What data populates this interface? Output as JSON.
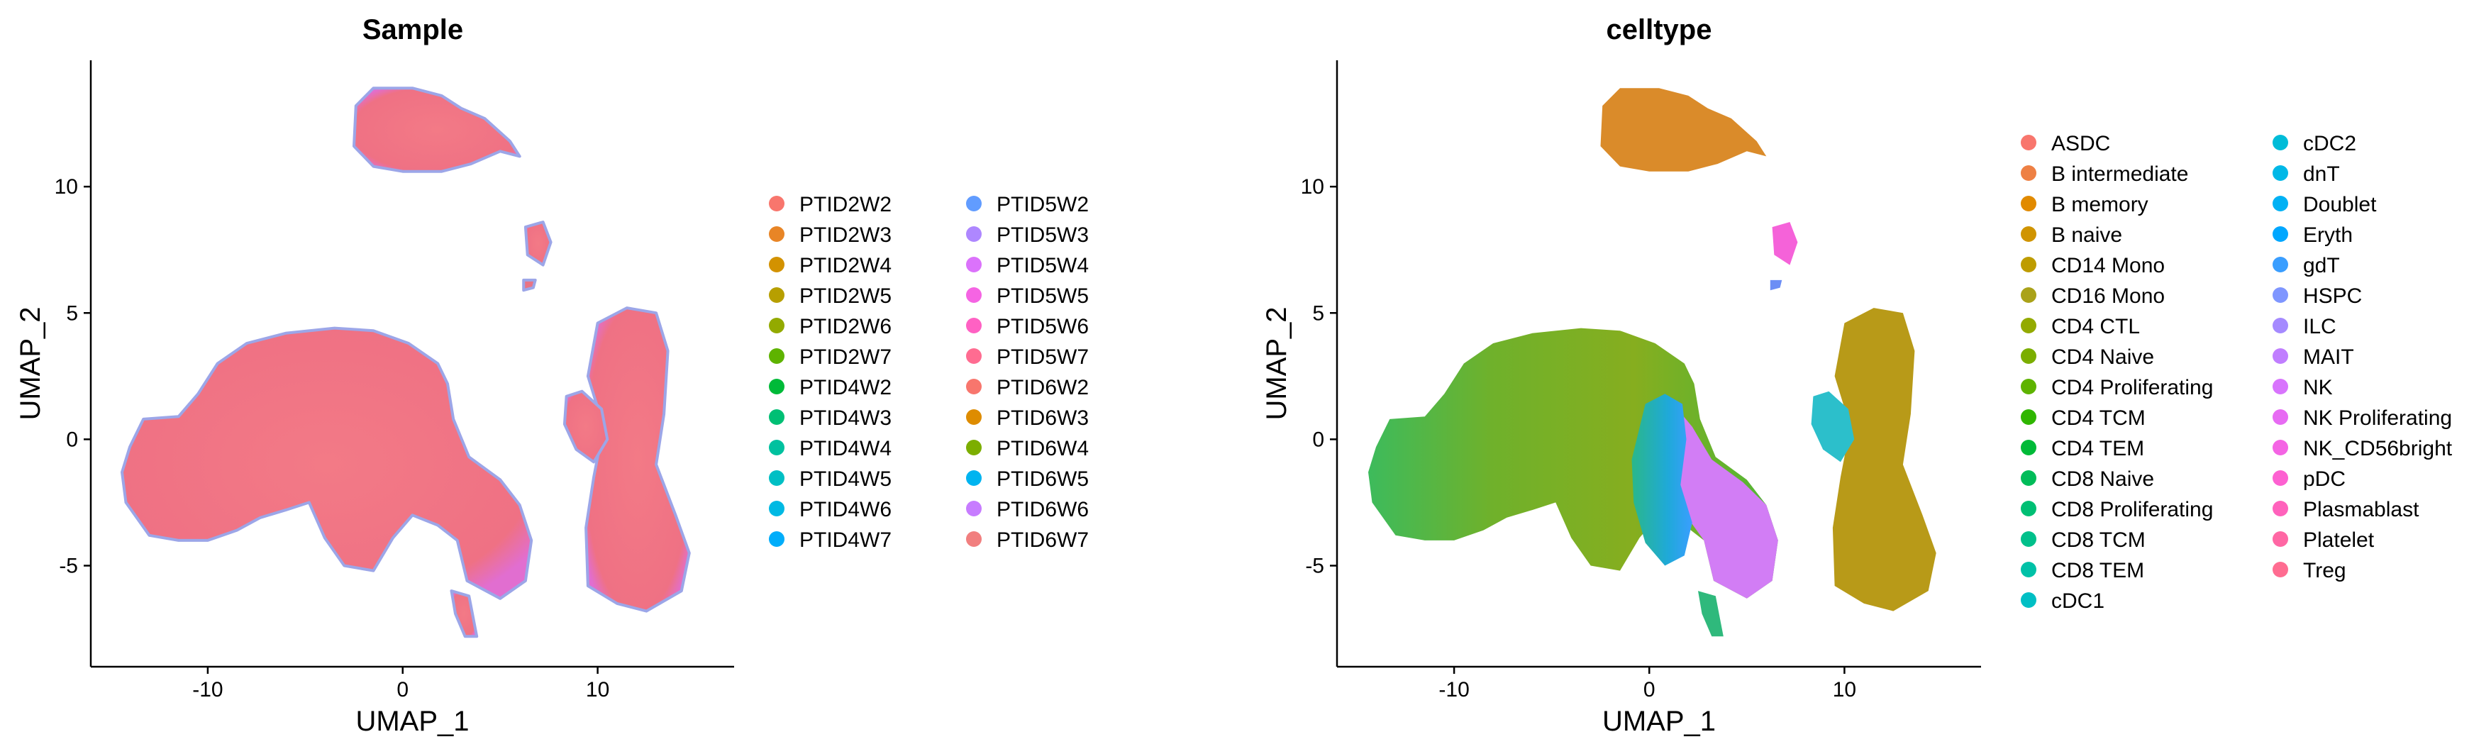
{
  "chart_data": [
    {
      "type": "scatter",
      "title": "Sample",
      "xlabel": "UMAP_1",
      "ylabel": "UMAP_2",
      "xlim": [
        -16,
        17
      ],
      "ylim": [
        -9,
        15
      ],
      "xticks": [
        -10,
        0,
        10
      ],
      "yticks": [
        -5,
        0,
        5,
        10
      ],
      "xtick_labels": [
        "-10",
        "0",
        "10"
      ],
      "ytick_labels": [
        "-5",
        "0",
        "5",
        "10"
      ],
      "grid": false,
      "legend_position": "right",
      "legend_columns": 2,
      "series": [
        {
          "name": "PTID2W2",
          "color": "#F8766D"
        },
        {
          "name": "PTID2W3",
          "color": "#E88526"
        },
        {
          "name": "PTID2W4",
          "color": "#D39200"
        },
        {
          "name": "PTID2W5",
          "color": "#B79F00"
        },
        {
          "name": "PTID2W6",
          "color": "#93AA00"
        },
        {
          "name": "PTID2W7",
          "color": "#5EB300"
        },
        {
          "name": "PTID4W2",
          "color": "#00BA38"
        },
        {
          "name": "PTID4W3",
          "color": "#00BF74"
        },
        {
          "name": "PTID4W4",
          "color": "#00C19F"
        },
        {
          "name": "PTID4W5",
          "color": "#00BFC4"
        },
        {
          "name": "PTID4W6",
          "color": "#00B9E3"
        },
        {
          "name": "PTID4W7",
          "color": "#00ADFA"
        },
        {
          "name": "PTID5W2",
          "color": "#619CFF"
        },
        {
          "name": "PTID5W3",
          "color": "#AE87FF"
        },
        {
          "name": "PTID5W4",
          "color": "#DB72FB"
        },
        {
          "name": "PTID5W5",
          "color": "#F564E3"
        },
        {
          "name": "PTID5W6",
          "color": "#FF61C3"
        },
        {
          "name": "PTID5W7",
          "color": "#FF6C91"
        },
        {
          "name": "PTID6W2",
          "color": "#F8766D"
        },
        {
          "name": "PTID6W3",
          "color": "#DE8C00"
        },
        {
          "name": "PTID6W4",
          "color": "#7CAE00"
        },
        {
          "name": "PTID6W5",
          "color": "#00B4F0"
        },
        {
          "name": "PTID6W6",
          "color": "#C77CFF"
        },
        {
          "name": "PTID6W7",
          "color": "#F17F7F"
        }
      ]
    },
    {
      "type": "scatter",
      "title": "celltype",
      "xlabel": "UMAP_1",
      "ylabel": "UMAP_2",
      "xlim": [
        -16,
        17
      ],
      "ylim": [
        -9,
        15
      ],
      "xticks": [
        -10,
        0,
        10
      ],
      "yticks": [
        -5,
        0,
        5,
        10
      ],
      "xtick_labels": [
        "-10",
        "0",
        "10"
      ],
      "ytick_labels": [
        "-5",
        "0",
        "5",
        "10"
      ],
      "grid": false,
      "legend_position": "right",
      "legend_columns": 2,
      "series": [
        {
          "name": "ASDC",
          "color": "#F8766D"
        },
        {
          "name": "B intermediate",
          "color": "#EE8044"
        },
        {
          "name": "B memory",
          "color": "#E18A00"
        },
        {
          "name": "B naive",
          "color": "#D09400"
        },
        {
          "name": "CD14 Mono",
          "color": "#BE9C00"
        },
        {
          "name": "CD16 Mono",
          "color": "#AAA219"
        },
        {
          "name": "CD4 CTL",
          "color": "#93AA00"
        },
        {
          "name": "CD4 Naive",
          "color": "#7BAE00"
        },
        {
          "name": "CD4 Proliferating",
          "color": "#5EB300"
        },
        {
          "name": "CD4 TCM",
          "color": "#2FB600"
        },
        {
          "name": "CD4 TEM",
          "color": "#00BA38"
        },
        {
          "name": "CD8 Naive",
          "color": "#00BC59"
        },
        {
          "name": "CD8 Proliferating",
          "color": "#00BF74"
        },
        {
          "name": "CD8 TCM",
          "color": "#00C08B"
        },
        {
          "name": "CD8 TEM",
          "color": "#00C1A7"
        },
        {
          "name": "cDC1",
          "color": "#00BFC4"
        },
        {
          "name": "cDC2",
          "color": "#00BCD8"
        },
        {
          "name": "dnT",
          "color": "#00B8E7"
        },
        {
          "name": "Doublet",
          "color": "#00B1F4"
        },
        {
          "name": "Eryth",
          "color": "#00A7FF"
        },
        {
          "name": "gdT",
          "color": "#3A9EFF"
        },
        {
          "name": "HSPC",
          "color": "#7F96FF"
        },
        {
          "name": "ILC",
          "color": "#A58AFF"
        },
        {
          "name": "MAIT",
          "color": "#C07EFF"
        },
        {
          "name": "NK",
          "color": "#D874FD"
        },
        {
          "name": "NK Proliferating",
          "color": "#E76BF3"
        },
        {
          "name": "NK_CD56bright",
          "color": "#F464E4"
        },
        {
          "name": "pDC",
          "color": "#FD61D1"
        },
        {
          "name": "Plasmablast",
          "color": "#FF62BC"
        },
        {
          "name": "Platelet",
          "color": "#FF67A4"
        },
        {
          "name": "Treg",
          "color": "#FF6C91"
        }
      ]
    }
  ]
}
